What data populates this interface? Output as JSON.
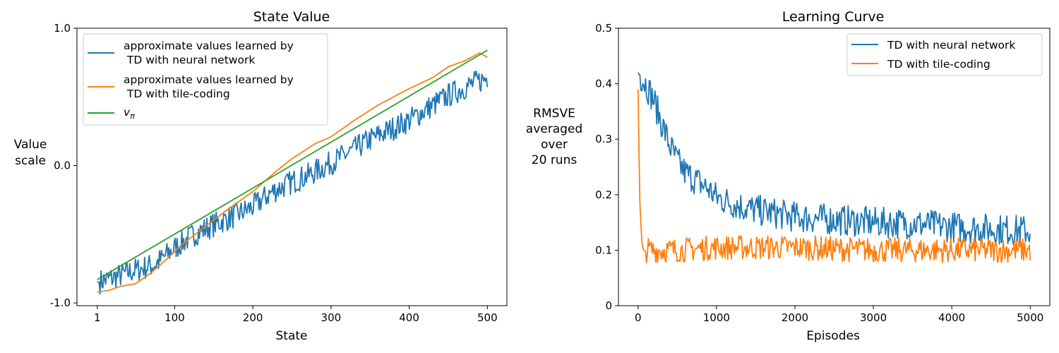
{
  "colors": {
    "neural": "#1f77b4",
    "tile": "#ff7f0e",
    "true": "#2ca02c"
  },
  "chart_data": [
    {
      "type": "line",
      "title": "State Value",
      "xlabel": "State",
      "ylabel_lines": [
        "Value",
        "scale"
      ],
      "xlim": [
        -25,
        525
      ],
      "ylim": [
        -1.02,
        1.0
      ],
      "xticks": [
        1,
        100,
        200,
        300,
        400,
        500
      ],
      "yticks": [
        -1.0,
        0.0,
        1.0
      ],
      "ytick_labels": [
        "-1.0",
        "0.0",
        "1.0"
      ],
      "grid": false,
      "legend_position": "upper-left",
      "series": [
        {
          "name": "approximate values learned by\n TD with neural network",
          "legend_lines": [
            "approximate values learned by",
            " TD with neural network"
          ],
          "color_key": "neural",
          "noisy": true,
          "x": [
            1,
            25,
            50,
            75,
            100,
            125,
            150,
            175,
            200,
            225,
            250,
            275,
            300,
            325,
            350,
            375,
            400,
            425,
            450,
            475,
            500
          ],
          "values": [
            -0.85,
            -0.81,
            -0.76,
            -0.72,
            -0.6,
            -0.5,
            -0.43,
            -0.37,
            -0.3,
            -0.19,
            -0.12,
            -0.06,
            0.02,
            0.1,
            0.19,
            0.26,
            0.33,
            0.42,
            0.51,
            0.58,
            0.64
          ]
        },
        {
          "name": "approximate values learned by\n TD with tile-coding",
          "legend_lines": [
            "approximate values learned by",
            " TD with tile-coding"
          ],
          "color_key": "tile",
          "noisy": false,
          "x": [
            1,
            15,
            30,
            50,
            70,
            90,
            110,
            140,
            170,
            200,
            230,
            250,
            280,
            300,
            330,
            360,
            400,
            430,
            450,
            470,
            490,
            500
          ],
          "values": [
            -0.92,
            -0.91,
            -0.88,
            -0.86,
            -0.78,
            -0.68,
            -0.57,
            -0.44,
            -0.31,
            -0.19,
            -0.04,
            0.05,
            0.16,
            0.21,
            0.33,
            0.44,
            0.56,
            0.64,
            0.72,
            0.76,
            0.82,
            0.79
          ]
        },
        {
          "name": "v_π",
          "legend_label": "v",
          "legend_sub": "π",
          "color_key": "true",
          "noisy": false,
          "x": [
            1,
            500
          ],
          "values": [
            -0.83,
            0.84
          ]
        }
      ]
    },
    {
      "type": "line",
      "title": "Learning Curve",
      "xlabel": "Episodes",
      "ylabel_lines": [
        "RMSVE",
        "averaged",
        "over",
        "20 runs"
      ],
      "xlim": [
        -250,
        5250
      ],
      "ylim": [
        0,
        0.5
      ],
      "xticks": [
        0,
        1000,
        2000,
        3000,
        4000,
        5000
      ],
      "yticks": [
        0,
        0.1,
        0.2,
        0.3,
        0.4,
        0.5
      ],
      "ytick_labels": [
        "0",
        "0.1",
        "0.2",
        "0.3",
        "0.4",
        "0.5"
      ],
      "grid": false,
      "legend_position": "upper-right",
      "series": [
        {
          "name": "TD with neural network",
          "legend_lines": [
            "TD with neural network"
          ],
          "color_key": "neural",
          "noisy": true,
          "x": [
            0,
            100,
            200,
            300,
            400,
            500,
            600,
            700,
            800,
            900,
            1000,
            1200,
            1400,
            1600,
            1800,
            2000,
            2500,
            3000,
            3500,
            4000,
            4500,
            5000
          ],
          "values": [
            0.42,
            0.4,
            0.37,
            0.33,
            0.29,
            0.26,
            0.24,
            0.23,
            0.22,
            0.21,
            0.195,
            0.185,
            0.175,
            0.17,
            0.165,
            0.16,
            0.155,
            0.15,
            0.148,
            0.142,
            0.138,
            0.135
          ]
        },
        {
          "name": "TD with tile-coding",
          "legend_lines": [
            "TD with tile-coding"
          ],
          "color_key": "tile",
          "noisy": true,
          "x": [
            0,
            20,
            40,
            60,
            80,
            100,
            200,
            500,
            1000,
            2000,
            3000,
            4000,
            5000
          ],
          "values": [
            0.39,
            0.2,
            0.12,
            0.095,
            0.08,
            0.1,
            0.1,
            0.1,
            0.105,
            0.105,
            0.1,
            0.1,
            0.1
          ]
        }
      ]
    }
  ]
}
